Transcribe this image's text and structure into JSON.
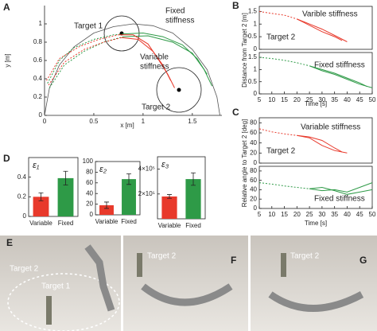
{
  "chart_data": [
    {
      "type": "line",
      "panel": "A",
      "xlabel": "x [m]",
      "ylabel": "y [m]",
      "xlim": [
        0,
        1.8
      ],
      "ylim": [
        0,
        1.2
      ],
      "xticks": [
        0,
        0.5,
        1,
        1.5
      ],
      "yticks": [
        0,
        0.2,
        0.4,
        0.6,
        0.8,
        1
      ],
      "annotations": [
        {
          "text": "Target 1",
          "color": "#222222"
        },
        {
          "text": "Fixed",
          "color": "#2e9a47"
        },
        {
          "text": "stiffness",
          "color": "#2e9a47"
        },
        {
          "text": "Variable",
          "color": "#e8392b"
        },
        {
          "text": "stiffness",
          "color": "#e8392b"
        },
        {
          "text": "Target 2",
          "color": "#222222"
        }
      ],
      "series": [
        {
          "color": "#555555",
          "x": [
            0.0,
            0.05,
            0.15,
            0.3,
            0.5,
            0.7,
            0.9,
            1.1,
            1.3,
            1.5,
            1.65,
            1.75,
            1.78
          ],
          "values": [
            0.0,
            0.3,
            0.55,
            0.75,
            0.9,
            0.97,
            1.0,
            0.98,
            0.9,
            0.72,
            0.5,
            0.2,
            0.0
          ]
        },
        {
          "color": "#2e9a47",
          "dash": true,
          "x": [
            0.03,
            0.15,
            0.3,
            0.5,
            0.7,
            0.8
          ],
          "values": [
            0.35,
            0.6,
            0.74,
            0.83,
            0.88,
            0.89
          ]
        },
        {
          "color": "#2e9a47",
          "x": [
            0.8,
            1.0,
            1.2,
            1.4,
            1.55,
            1.65
          ],
          "values": [
            0.89,
            0.9,
            0.86,
            0.77,
            0.62,
            0.45
          ]
        },
        {
          "color": "#2e9a47",
          "dash": true,
          "x": [
            0.05,
            0.2,
            0.4,
            0.6,
            0.8
          ],
          "values": [
            0.3,
            0.55,
            0.7,
            0.8,
            0.86
          ]
        },
        {
          "color": "#2e9a47",
          "x": [
            0.8,
            1.05,
            1.3,
            1.5,
            1.62,
            1.7
          ],
          "values": [
            0.86,
            0.87,
            0.8,
            0.68,
            0.5,
            0.32
          ]
        },
        {
          "color": "#e8392b",
          "dash": true,
          "x": [
            0.02,
            0.15,
            0.35,
            0.55,
            0.75
          ],
          "values": [
            0.38,
            0.62,
            0.75,
            0.83,
            0.88
          ]
        },
        {
          "color": "#e8392b",
          "x": [
            0.75,
            0.9,
            1.05,
            1.15,
            1.25,
            1.32
          ],
          "values": [
            0.88,
            0.88,
            0.78,
            0.62,
            0.45,
            0.3
          ]
        },
        {
          "color": "#e8392b",
          "dash": true,
          "x": [
            0.04,
            0.2,
            0.4,
            0.6,
            0.78
          ],
          "values": [
            0.33,
            0.58,
            0.72,
            0.8,
            0.85
          ]
        },
        {
          "color": "#e8392b",
          "x": [
            0.78,
            0.95,
            1.1,
            1.2,
            1.28
          ],
          "values": [
            0.85,
            0.83,
            0.7,
            0.55,
            0.38
          ]
        }
      ]
    },
    {
      "type": "line",
      "panel": "B",
      "ylabel": "Distance from Target 2 [m]",
      "xlim": [
        5,
        50
      ],
      "ylim": [
        0,
        1.7
      ],
      "yticks": [
        0,
        0.5,
        1,
        1.5
      ],
      "annotations": [
        {
          "text": "Varible stiffness",
          "color": "#222222"
        },
        {
          "text": "Target 2",
          "color": "#222222"
        }
      ],
      "series": [
        {
          "color": "#e8392b",
          "dash": true,
          "x": [
            5,
            10,
            15,
            20
          ],
          "values": [
            1.5,
            1.42,
            1.35,
            1.2
          ]
        },
        {
          "color": "#e8392b",
          "x": [
            20,
            25,
            30,
            35,
            40
          ],
          "values": [
            1.2,
            1.0,
            0.8,
            0.55,
            0.3
          ]
        },
        {
          "color": "#e8392b",
          "x": [
            20,
            25,
            30,
            35,
            38
          ],
          "values": [
            1.2,
            0.95,
            0.7,
            0.5,
            0.35
          ]
        }
      ]
    },
    {
      "type": "line",
      "xlabel": "Time [s]",
      "xlim": [
        5,
        50
      ],
      "ylim": [
        0,
        1.7
      ],
      "xticks": [
        5,
        10,
        15,
        20,
        25,
        30,
        35,
        40,
        45,
        50
      ],
      "yticks": [
        0,
        0.5,
        1,
        1.5
      ],
      "annotations": [
        {
          "text": "Fixed stiffness",
          "color": "#222222"
        }
      ],
      "series": [
        {
          "color": "#2e9a47",
          "dash": true,
          "x": [
            5,
            10,
            15,
            20,
            25
          ],
          "values": [
            1.5,
            1.45,
            1.38,
            1.28,
            1.15
          ]
        },
        {
          "color": "#2e9a47",
          "x": [
            25,
            30,
            35,
            40,
            45,
            50
          ],
          "values": [
            1.15,
            0.95,
            0.8,
            0.6,
            0.4,
            0.25
          ]
        },
        {
          "color": "#2e9a47",
          "x": [
            25,
            30,
            35,
            40,
            45,
            48
          ],
          "values": [
            1.15,
            1.0,
            0.85,
            0.65,
            0.45,
            0.3
          ]
        }
      ]
    },
    {
      "type": "line",
      "panel": "C",
      "ylabel": "Relative angle to Target 2 [deg]",
      "xlim": [
        5,
        50
      ],
      "ylim": [
        0,
        90
      ],
      "yticks": [
        0,
        20,
        40,
        60,
        80
      ],
      "annotations": [
        {
          "text": "Variable stiffness",
          "color": "#222222"
        },
        {
          "text": "Target 2",
          "color": "#222222"
        }
      ],
      "series": [
        {
          "color": "#e8392b",
          "dash": true,
          "x": [
            5,
            10,
            15,
            20
          ],
          "values": [
            68,
            62,
            58,
            55
          ]
        },
        {
          "color": "#e8392b",
          "x": [
            20,
            25,
            30,
            35,
            40
          ],
          "values": [
            55,
            50,
            35,
            25,
            20
          ]
        },
        {
          "color": "#e8392b",
          "x": [
            20,
            25,
            30,
            35,
            38
          ],
          "values": [
            55,
            52,
            45,
            30,
            22
          ]
        }
      ]
    },
    {
      "type": "line",
      "xlabel": "Time [s]",
      "xlim": [
        5,
        50
      ],
      "ylim": [
        0,
        90
      ],
      "xticks": [
        5,
        10,
        15,
        20,
        25,
        30,
        35,
        40,
        45,
        50
      ],
      "yticks": [
        0,
        20,
        40,
        60,
        80
      ],
      "annotations": [
        {
          "text": "Fixed stiffness",
          "color": "#222222"
        }
      ],
      "series": [
        {
          "color": "#2e9a47",
          "dash": true,
          "x": [
            5,
            10,
            15,
            20,
            25
          ],
          "values": [
            55,
            52,
            48,
            45,
            42
          ]
        },
        {
          "color": "#2e9a47",
          "x": [
            25,
            30,
            35,
            40,
            45,
            50
          ],
          "values": [
            42,
            38,
            40,
            35,
            45,
            55
          ]
        },
        {
          "color": "#2e9a47",
          "x": [
            25,
            30,
            35,
            40,
            45,
            50
          ],
          "values": [
            42,
            45,
            38,
            30,
            35,
            40
          ]
        }
      ]
    },
    {
      "type": "bar",
      "panel": "D",
      "title": "ε₁",
      "categories": [
        "Variable",
        "Fixed"
      ],
      "values": [
        0.2,
        0.39
      ],
      "errors": [
        0.04,
        0.07
      ],
      "colors": [
        "#e8392b",
        "#2e9a47"
      ],
      "ylim": [
        0,
        0.6
      ],
      "yticks": [
        0,
        0.2,
        0.4
      ]
    },
    {
      "type": "bar",
      "title": "ε₂",
      "categories": [
        "Variable",
        "Fixed"
      ],
      "values": [
        18,
        67
      ],
      "errors": [
        6,
        10
      ],
      "colors": [
        "#e8392b",
        "#2e9a47"
      ],
      "ylim": [
        0,
        100
      ],
      "yticks": [
        0,
        20,
        40,
        60,
        80,
        100
      ]
    },
    {
      "type": "bar",
      "title": "ε₃",
      "categories": [
        "Variable",
        "Fixed"
      ],
      "values": [
        180000,
        320000
      ],
      "errors": [
        15000,
        50000
      ],
      "colors": [
        "#e8392b",
        "#2e9a47"
      ],
      "ylim": [
        0,
        500000
      ],
      "yticks": [
        {
          "value": 200000,
          "label": "2×10⁵"
        },
        {
          "value": 400000,
          "label": "4×10⁵"
        }
      ]
    }
  ],
  "photos": [
    {
      "panel": "E",
      "labels": [
        "Target 2",
        "Target 1"
      ]
    },
    {
      "panel": "F",
      "labels": [
        "Target 2"
      ]
    },
    {
      "panel": "G",
      "labels": [
        "Target 2"
      ]
    }
  ]
}
